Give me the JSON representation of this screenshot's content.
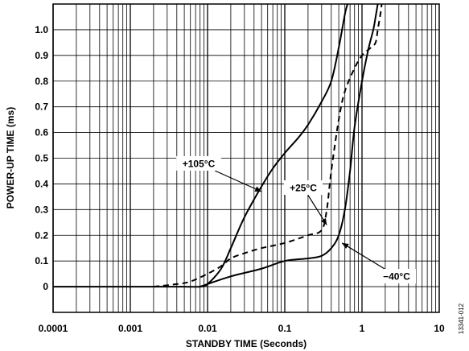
{
  "chart_data": {
    "type": "line",
    "xlabel": "STANDBY TIME (Seconds)",
    "ylabel": "POWER-UP TIME (ms)",
    "x_scale": "log",
    "xlim": [
      0.0001,
      10
    ],
    "ylim": [
      -0.1,
      1.1
    ],
    "grid": true,
    "x_ticks": [
      "0.0001",
      "0.001",
      "0.01",
      "0.1",
      "1",
      "10"
    ],
    "x_tick_values": [
      0.0001,
      0.001,
      0.01,
      0.1,
      1,
      10
    ],
    "y_ticks": [
      "0",
      "0.1",
      "0.2",
      "0.3",
      "0.4",
      "0.5",
      "0.6",
      "0.7",
      "0.8",
      "0.9",
      "1.0"
    ],
    "y_tick_values": [
      0,
      0.1,
      0.2,
      0.3,
      0.4,
      0.5,
      0.6,
      0.7,
      0.8,
      0.9,
      1.0
    ],
    "figure_id": "13341-012",
    "series": [
      {
        "name": "+105°C",
        "style": "solid",
        "points": [
          [
            0.0001,
            0.0
          ],
          [
            0.001,
            0.0
          ],
          [
            0.002,
            0.0
          ],
          [
            0.005,
            0.0
          ],
          [
            0.008,
            0.0
          ],
          [
            0.01,
            0.01
          ],
          [
            0.015,
            0.07
          ],
          [
            0.02,
            0.15
          ],
          [
            0.03,
            0.27
          ],
          [
            0.05,
            0.39
          ],
          [
            0.07,
            0.46
          ],
          [
            0.1,
            0.52
          ],
          [
            0.15,
            0.58
          ],
          [
            0.2,
            0.63
          ],
          [
            0.3,
            0.72
          ],
          [
            0.4,
            0.8
          ],
          [
            0.5,
            0.93
          ],
          [
            0.6,
            1.06
          ],
          [
            0.65,
            1.1
          ]
        ]
      },
      {
        "name": "+25°C",
        "style": "dashed",
        "points": [
          [
            0.002,
            0.0
          ],
          [
            0.004,
            0.01
          ],
          [
            0.006,
            0.02
          ],
          [
            0.01,
            0.05
          ],
          [
            0.015,
            0.08
          ],
          [
            0.02,
            0.11
          ],
          [
            0.03,
            0.13
          ],
          [
            0.05,
            0.15
          ],
          [
            0.1,
            0.17
          ],
          [
            0.2,
            0.2
          ],
          [
            0.3,
            0.22
          ],
          [
            0.35,
            0.3
          ],
          [
            0.4,
            0.45
          ],
          [
            0.5,
            0.65
          ],
          [
            0.6,
            0.76
          ],
          [
            0.8,
            0.85
          ],
          [
            1.0,
            0.9
          ],
          [
            1.3,
            0.93
          ],
          [
            1.5,
            0.95
          ],
          [
            1.6,
            1.0
          ],
          [
            1.75,
            1.07
          ],
          [
            1.8,
            1.1
          ]
        ]
      },
      {
        "name": "−40°C",
        "style": "solid",
        "points": [
          [
            0.008,
            0.0
          ],
          [
            0.01,
            0.01
          ],
          [
            0.02,
            0.04
          ],
          [
            0.05,
            0.07
          ],
          [
            0.1,
            0.1
          ],
          [
            0.2,
            0.11
          ],
          [
            0.3,
            0.12
          ],
          [
            0.4,
            0.15
          ],
          [
            0.5,
            0.2
          ],
          [
            0.6,
            0.3
          ],
          [
            0.7,
            0.45
          ],
          [
            0.8,
            0.62
          ],
          [
            1.0,
            0.8
          ],
          [
            1.2,
            0.92
          ],
          [
            1.4,
            1.0
          ],
          [
            1.5,
            1.05
          ],
          [
            1.6,
            1.1
          ]
        ]
      }
    ],
    "annotations": [
      {
        "text": "+105°C",
        "target": [
          0.05,
          0.37
        ]
      },
      {
        "text": "+25°C",
        "target": [
          0.35,
          0.24
        ]
      },
      {
        "text": "−40°C",
        "target": [
          0.55,
          0.17
        ]
      }
    ]
  }
}
